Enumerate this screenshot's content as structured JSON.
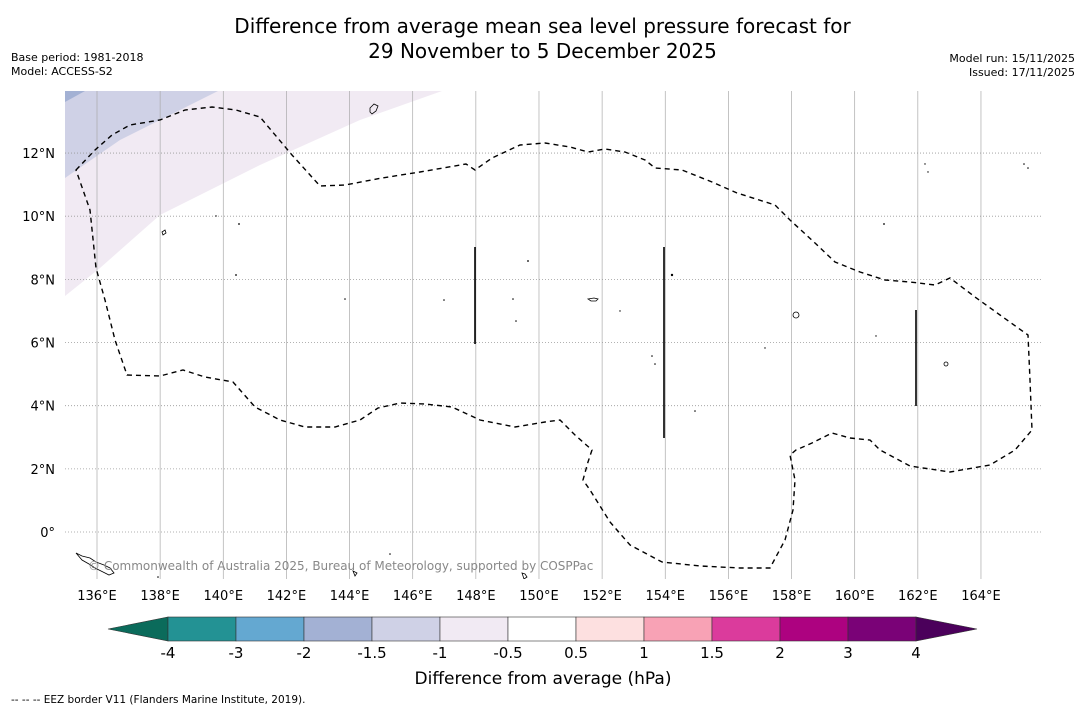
{
  "title_line1": "Difference from average mean sea level pressure forecast for",
  "title_line2": "29 November to 5 December 2025",
  "base_period": "Base period: 1981-2018",
  "model": "Model: ACCESS-S2",
  "model_run": "Model run: 15/11/2025",
  "issued": "Issued: 17/11/2025",
  "credit": "© Commonwealth of Australia 2025, Bureau of Meteorology, supported by COSPPac",
  "footer": "--  --  -- EEZ border V11 (Flanders Marine Institute, 2019).",
  "map": {
    "lon_range": [
      135,
      166
    ],
    "lat_range": [
      -1.5,
      14
    ],
    "lon_ticks": [
      "136°E",
      "138°E",
      "140°E",
      "142°E",
      "144°E",
      "146°E",
      "148°E",
      "150°E",
      "152°E",
      "154°E",
      "156°E",
      "158°E",
      "160°E",
      "162°E",
      "164°E"
    ],
    "lat_ticks": [
      "12°N",
      "10°N",
      "8°N",
      "6°N",
      "4°N",
      "2°N",
      "0°"
    ],
    "lon_values": [
      136,
      138,
      140,
      142,
      144,
      146,
      148,
      150,
      152,
      154,
      156,
      158,
      160,
      162,
      164
    ],
    "lat_values": [
      12,
      10,
      8,
      6,
      4,
      2,
      0
    ],
    "anomaly_regions": [
      {
        "range": "-2 to -1.5",
        "color": "#a3b1d4"
      },
      {
        "range": "-1.5 to -1",
        "color": "#cfd1e6"
      },
      {
        "range": "-1 to -0.5",
        "color": "#f1eaf3"
      }
    ],
    "eez_line_style": "dashed"
  },
  "colorbar": {
    "label": "Difference from average (hPa)",
    "ticks": [
      "-4",
      "-3",
      "-2",
      "-1.5",
      "-1",
      "-0.5",
      "0.5",
      "1",
      "1.5",
      "2",
      "3",
      "4"
    ],
    "colors": [
      "#239294",
      "#64a8d1",
      "#a3b1d4",
      "#cfd1e6",
      "#f1eaf3",
      "#ffffff",
      "#fde0e0",
      "#f8a2b5",
      "#db3b9c",
      "#ad0280",
      "#7a0277"
    ],
    "under_color": "#0b6b5b",
    "over_color": "#4b005b"
  }
}
